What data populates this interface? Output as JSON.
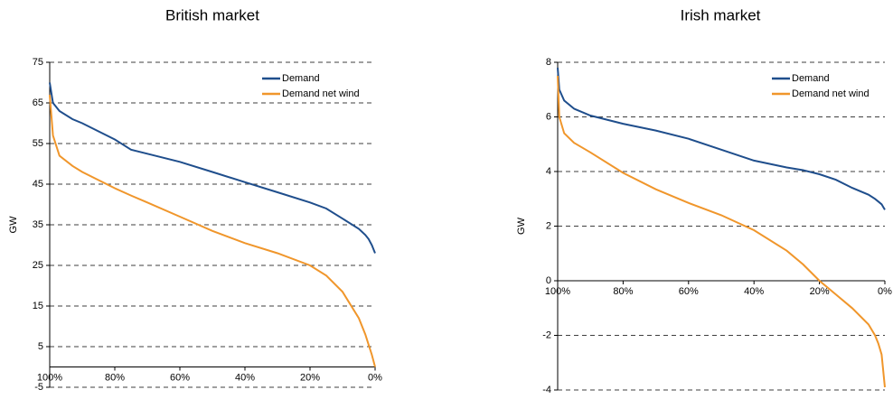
{
  "chart_data": [
    {
      "type": "line",
      "title": "British market",
      "y_label": "GW",
      "x": [
        100,
        99,
        97,
        93,
        90,
        85,
        80,
        75,
        70,
        60,
        50,
        40,
        30,
        20,
        15,
        10,
        5,
        3,
        2,
        1,
        0
      ],
      "series": [
        {
          "name": "Demand",
          "color": "#1f4e8c",
          "values": [
            70,
            65,
            63,
            61,
            60,
            58,
            56,
            53.5,
            52.5,
            50.5,
            48,
            45.5,
            43,
            40.5,
            39,
            36.5,
            34,
            32.5,
            31.5,
            30,
            28
          ]
        },
        {
          "name": "Demand net wind",
          "color": "#f0962b",
          "values": [
            67,
            57,
            52,
            49.5,
            48,
            46,
            44,
            42.2,
            40.5,
            37,
            33.5,
            30.5,
            28,
            25,
            22.5,
            18.5,
            12,
            8,
            5.5,
            3,
            0
          ]
        }
      ],
      "xlim": [
        100,
        0
      ],
      "xticks": [
        {
          "value": 100,
          "label": "100%"
        },
        {
          "value": 80,
          "label": "80%"
        },
        {
          "value": 60,
          "label": "60%"
        },
        {
          "value": 40,
          "label": "40%"
        },
        {
          "value": 20,
          "label": "20%"
        },
        {
          "value": 0,
          "label": "0%"
        }
      ],
      "ylim": [
        -5,
        75
      ],
      "yticks": [
        -5,
        5,
        15,
        25,
        35,
        45,
        55,
        65,
        75
      ],
      "grid": true,
      "legend": "top-right"
    },
    {
      "type": "line",
      "title": "Irish market",
      "y_label": "GW",
      "x": [
        100,
        99.5,
        98,
        95,
        90,
        80,
        70,
        60,
        50,
        40,
        30,
        25,
        20,
        15,
        10,
        5,
        3,
        2,
        1,
        0
      ],
      "series": [
        {
          "name": "Demand",
          "color": "#1f4e8c",
          "values": [
            7.8,
            7,
            6.6,
            6.3,
            6.05,
            5.75,
            5.5,
            5.2,
            4.8,
            4.4,
            4.15,
            4.05,
            3.9,
            3.7,
            3.4,
            3.15,
            3.0,
            2.9,
            2.8,
            2.6
          ]
        },
        {
          "name": "Demand net wind",
          "color": "#f0962b",
          "values": [
            7.5,
            6,
            5.4,
            5.05,
            4.7,
            3.95,
            3.35,
            2.85,
            2.4,
            1.85,
            1.1,
            0.6,
            0,
            -0.5,
            -1,
            -1.6,
            -2,
            -2.3,
            -2.7,
            -3.9
          ]
        }
      ],
      "xlim": [
        100,
        0
      ],
      "xticks": [
        {
          "value": 100,
          "label": "100%"
        },
        {
          "value": 80,
          "label": "80%"
        },
        {
          "value": 60,
          "label": "60%"
        },
        {
          "value": 40,
          "label": "40%"
        },
        {
          "value": 20,
          "label": "20%"
        },
        {
          "value": 0,
          "label": "0%"
        }
      ],
      "ylim": [
        -4,
        8
      ],
      "yticks": [
        -4,
        -2,
        0,
        2,
        4,
        6,
        8
      ],
      "grid": true,
      "legend": "top-right"
    }
  ]
}
